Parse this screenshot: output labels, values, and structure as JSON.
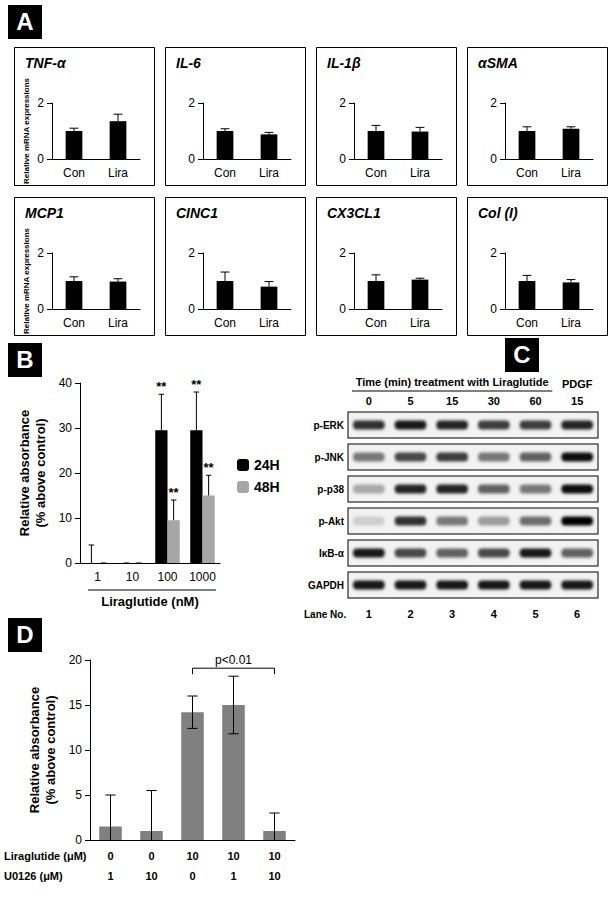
{
  "panel_labels": [
    "A",
    "B",
    "C",
    "D"
  ],
  "chart_data": [
    {
      "type": "bar",
      "title": "TNF-α",
      "categories": [
        "Con",
        "Lira"
      ],
      "values": [
        1.0,
        1.35
      ],
      "errors": [
        0.1,
        0.25
      ],
      "color": "#000000",
      "ylim": [
        0,
        2
      ],
      "yticks": [
        0,
        2
      ],
      "grid": false,
      "y_label": "Relative mRNA expressions"
    },
    {
      "type": "bar",
      "title": "IL-6",
      "categories": [
        "Con",
        "Lira"
      ],
      "values": [
        1.0,
        0.88
      ],
      "errors": [
        0.08,
        0.07
      ],
      "color": "#000000",
      "ylim": [
        0,
        2
      ],
      "yticks": [
        0,
        2
      ],
      "grid": false
    },
    {
      "type": "bar",
      "title": "IL-1β",
      "categories": [
        "Con",
        "Lira"
      ],
      "values": [
        1.0,
        0.98
      ],
      "errors": [
        0.2,
        0.15
      ],
      "color": "#000000",
      "ylim": [
        0,
        2
      ],
      "yticks": [
        0,
        2
      ],
      "grid": false
    },
    {
      "type": "bar",
      "title": "αSMA",
      "categories": [
        "Con",
        "Lira"
      ],
      "values": [
        1.0,
        1.08
      ],
      "errors": [
        0.15,
        0.07
      ],
      "color": "#000000",
      "ylim": [
        0,
        2
      ],
      "yticks": [
        0,
        2
      ],
      "grid": false
    },
    {
      "type": "bar",
      "title": "MCP1",
      "categories": [
        "Con",
        "Lira"
      ],
      "values": [
        1.0,
        0.98
      ],
      "errors": [
        0.15,
        0.1
      ],
      "color": "#000000",
      "ylim": [
        0,
        2
      ],
      "yticks": [
        0,
        2
      ],
      "grid": false,
      "y_label": "Relative mRNA expressions"
    },
    {
      "type": "bar",
      "title": "CINC1",
      "categories": [
        "Con",
        "Lira"
      ],
      "values": [
        1.0,
        0.8
      ],
      "errors": [
        0.32,
        0.18
      ],
      "color": "#000000",
      "ylim": [
        0,
        2
      ],
      "yticks": [
        0,
        2
      ],
      "grid": false
    },
    {
      "type": "bar",
      "title": "CX3CL1",
      "categories": [
        "Con",
        "Lira"
      ],
      "values": [
        1.0,
        1.05
      ],
      "errors": [
        0.22,
        0.05
      ],
      "color": "#000000",
      "ylim": [
        0,
        2
      ],
      "yticks": [
        0,
        2
      ],
      "grid": false
    },
    {
      "type": "bar",
      "title": "Col (I)",
      "categories": [
        "Con",
        "Lira"
      ],
      "values": [
        1.0,
        0.95
      ],
      "errors": [
        0.2,
        0.1
      ],
      "color": "#000000",
      "ylim": [
        0,
        2
      ],
      "yticks": [
        0,
        2
      ],
      "grid": false
    },
    {
      "type": "bar",
      "categories": [
        "1",
        "10",
        "100",
        "1000"
      ],
      "x_label": "Liraglutide (nM)",
      "y_label": [
        "Relative absorbance",
        "(% above control)"
      ],
      "series": [
        {
          "name": "24H",
          "color": "#000000",
          "values": [
            0,
            0,
            29.5,
            29.5
          ],
          "errors": [
            4,
            0,
            8,
            8.5
          ],
          "marks": [
            null,
            null,
            "**",
            "**"
          ]
        },
        {
          "name": "48H",
          "color": "#a6a6a6",
          "values": [
            0,
            0,
            9.5,
            15
          ],
          "errors": [
            0,
            0,
            4.5,
            4.5
          ],
          "marks": [
            null,
            null,
            "**",
            "**"
          ]
        }
      ],
      "ylim": [
        0,
        40
      ],
      "yticks": [
        0,
        10,
        20,
        30,
        40
      ],
      "grid": false,
      "legend": "right"
    },
    {
      "type": "bar",
      "y_label": [
        "Relative absorbance",
        "(% above control)"
      ],
      "values": [
        1.5,
        1,
        14.2,
        15,
        1
      ],
      "errors": [
        3.5,
        4.5,
        1.8,
        3.2,
        2
      ],
      "color": "#808080",
      "ylim": [
        0,
        20
      ],
      "yticks": [
        0,
        5,
        10,
        15,
        20
      ],
      "grid": false,
      "tick_labels": "y",
      "conditions": [
        {
          "label": "Liraglutide (μM)",
          "values": [
            0,
            0,
            10,
            10,
            10
          ]
        },
        {
          "label": "U0126 (μM)",
          "values": [
            1,
            10,
            0,
            1,
            10
          ]
        }
      ],
      "comparisons": [
        {
          "from": 2,
          "to": 4,
          "label": "p<0.01"
        }
      ]
    }
  ],
  "blot": {
    "header": "Time (min) treatment with Liraglutide",
    "lanes": [
      "0",
      "5",
      "15",
      "30",
      "60"
    ],
    "control": {
      "label": "PDGF",
      "time": "15"
    },
    "rows": [
      {
        "label": "p-ERK",
        "intensities": [
          0.8,
          0.9,
          0.85,
          0.75,
          0.75,
          0.85
        ]
      },
      {
        "label": "p-JNK",
        "intensities": [
          0.5,
          0.7,
          0.75,
          0.5,
          0.6,
          0.95
        ]
      },
      {
        "label": "p-p38",
        "intensities": [
          0.3,
          0.85,
          0.85,
          0.6,
          0.5,
          0.95
        ]
      },
      {
        "label": "p-Akt",
        "intensities": [
          0.15,
          0.8,
          0.5,
          0.35,
          0.55,
          1.0
        ]
      },
      {
        "label": "IκB-α",
        "intensities": [
          0.9,
          0.7,
          0.6,
          0.7,
          0.9,
          0.6
        ]
      },
      {
        "label": "GAPDH",
        "intensities": [
          0.9,
          0.9,
          0.9,
          0.9,
          0.9,
          0.9
        ]
      }
    ],
    "lane_label": "Lane No.",
    "lane_numbers": [
      1,
      2,
      3,
      4,
      5,
      6
    ]
  }
}
